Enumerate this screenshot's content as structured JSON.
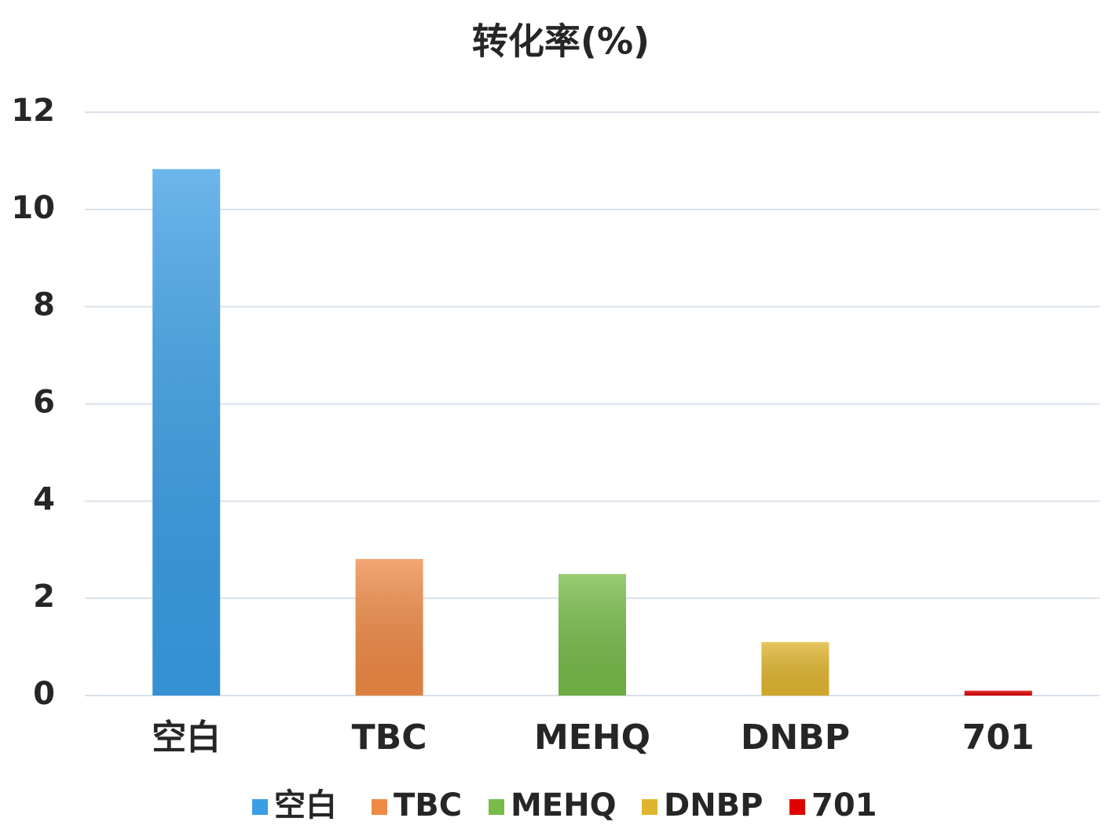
{
  "chart_data": {
    "type": "bar",
    "title": "转化率(%)",
    "categories": [
      "空白",
      "TBC",
      "MEHQ",
      "DNBP",
      "701"
    ],
    "values": [
      10.83,
      2.81,
      2.5,
      1.1,
      0.1
    ],
    "colors": [
      "#3a9ee6",
      "#ef8a46",
      "#78bb49",
      "#e0b52e",
      "#e00000"
    ],
    "ylim": [
      0,
      12
    ],
    "yticks": [
      0,
      2,
      4,
      6,
      8,
      10,
      12
    ],
    "grid": true,
    "legend": "bottom"
  }
}
